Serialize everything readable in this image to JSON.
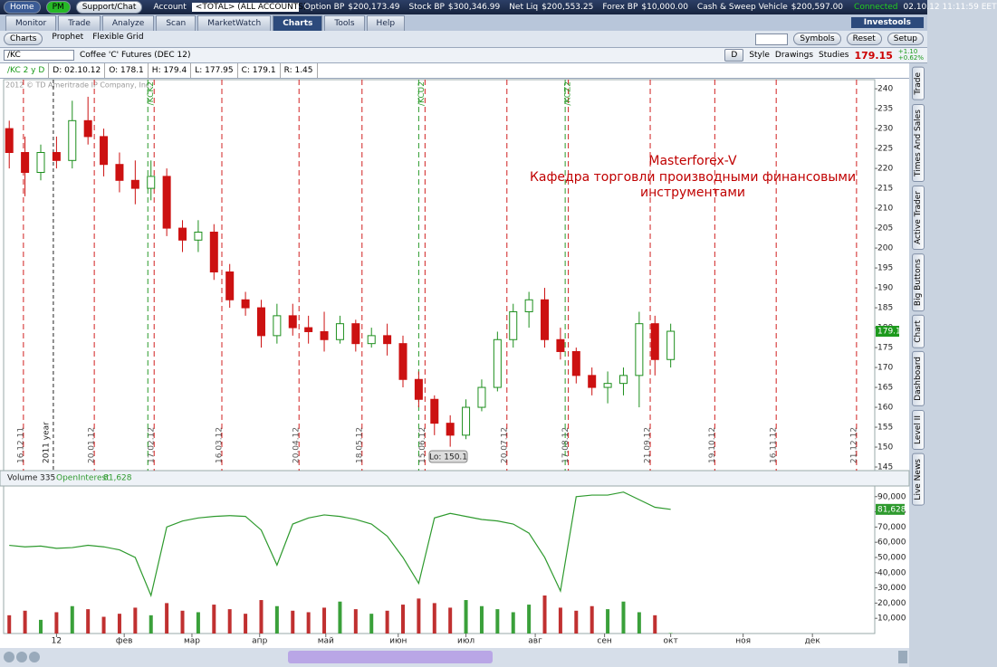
{
  "app": {
    "top_bar": {
      "home": "Home",
      "pm": "PM",
      "support": "Support/Chat",
      "account_label": "Account",
      "account": "<TOTAL> (ALL ACCOUNTS)",
      "fields": [
        {
          "label": "Option BP",
          "value": "$200,173.49"
        },
        {
          "label": "Stock BP",
          "value": "$300,346.99"
        },
        {
          "label": "Net Liq",
          "value": "$200,553.25"
        },
        {
          "label": "Forex BP",
          "value": "$10,000.00"
        },
        {
          "label": "Cash & Sweep Vehicle",
          "value": "$200,597.00"
        }
      ],
      "status": "Connected",
      "datetime": "02.10.12 11:11:59 EET"
    },
    "tabs": [
      "Monitor",
      "Trade",
      "Analyze",
      "Scan",
      "MarketWatch",
      "Charts",
      "Tools",
      "Help"
    ],
    "brand": "Investools",
    "subtabs": [
      "Charts",
      "Prophet",
      "Flexible Grid"
    ],
    "tools": [
      "Symbols",
      "Reset",
      "Setup"
    ],
    "symbol_bar": {
      "symbol": "/KC",
      "description": "Coffee 'C' Futures (DEC 12)",
      "aggregation": "D",
      "buttons": [
        "Style",
        "Drawings",
        "Studies"
      ],
      "last": "179.15",
      "change": "+1.10",
      "change_pct": "+0.62%"
    },
    "info_bar": [
      "/KC 2 y D",
      "D: 02.10.12",
      "O: 178.1",
      "H: 179.4",
      "L: 177.95",
      "C: 179.1",
      "R: 1.45"
    ],
    "side_tabs": [
      "Trade",
      "Times And Sales",
      "Active Trader",
      "Big Buttons",
      "Chart",
      "Dashboard",
      "Level II",
      "Live News"
    ]
  },
  "chart_data": [
    {
      "type": "candlestick",
      "copyright": "2012 © TD Ameritrade IP Company, Inc.",
      "annotation": [
        "Masterforex-V",
        "Кафедра торговли производными финансовыми",
        "инструментами"
      ],
      "low_label": "Lo: 150.1",
      "x": [
        -3,
        -2,
        -1,
        0,
        1,
        2,
        3,
        4,
        5,
        6,
        7,
        8,
        9,
        10,
        11,
        12,
        13,
        14,
        15,
        16,
        17,
        18,
        19,
        20,
        21,
        22,
        23,
        24,
        25,
        26,
        27,
        28,
        29,
        30,
        31,
        32,
        33,
        34,
        35,
        36,
        37,
        38,
        39
      ],
      "open": [
        230,
        224,
        219,
        224,
        222,
        232,
        228,
        221,
        217,
        215,
        218,
        205,
        202,
        204,
        194,
        187,
        185,
        178,
        183,
        180,
        179,
        177,
        181,
        176,
        178,
        176,
        167,
        162,
        156,
        153,
        160,
        165,
        177,
        184,
        187,
        177,
        174,
        168,
        165,
        166,
        168,
        181,
        172
      ],
      "high": [
        232,
        228,
        226,
        228,
        237,
        238,
        230,
        224,
        222,
        222,
        220,
        207,
        207,
        206,
        196,
        189,
        187,
        186,
        186,
        183,
        184,
        183,
        182,
        180,
        181,
        178,
        169,
        163,
        158,
        162,
        167,
        179,
        186,
        189,
        190,
        180,
        175,
        170,
        169,
        170,
        184,
        183,
        181
      ],
      "low": [
        220,
        213,
        217,
        220,
        220,
        226,
        218,
        214,
        211,
        212,
        203,
        199,
        199,
        192,
        185,
        183,
        175,
        176,
        178,
        176,
        174,
        176,
        174,
        175,
        173,
        165,
        160,
        153,
        150.1,
        152,
        159,
        164,
        175,
        180,
        175,
        172,
        166,
        163,
        161,
        163,
        160,
        168,
        170
      ],
      "close": [
        224,
        219,
        224,
        222,
        232,
        228,
        221,
        217,
        215,
        218,
        205,
        202,
        204,
        194,
        187,
        185,
        178,
        183,
        180,
        179,
        177,
        181,
        176,
        178,
        176,
        167,
        162,
        156,
        153,
        160,
        165,
        177,
        184,
        187,
        177,
        174,
        168,
        165,
        166,
        168,
        181,
        172,
        179.1
      ],
      "up_color": "#1d8f1d",
      "down_color": "#cc1111",
      "xlim": [
        -3.3,
        51.9
      ],
      "ylim": [
        144.1,
        242.3
      ],
      "yticks": [
        145,
        150,
        155,
        160,
        165,
        170,
        175,
        180,
        185,
        190,
        195,
        200,
        205,
        210,
        215,
        220,
        225,
        230,
        235,
        240
      ],
      "expirations": [
        {
          "x": -2.1,
          "label": "16.12.11"
        },
        {
          "x": 2.4,
          "label": "20.01.12"
        },
        {
          "x": 6.2,
          "label": "17.02.12"
        },
        {
          "x": 10.5,
          "label": "16.03.12"
        },
        {
          "x": 15.4,
          "label": "20.04.12"
        },
        {
          "x": 19.4,
          "label": "18.05.12"
        },
        {
          "x": 23.4,
          "label": "15.06.12"
        },
        {
          "x": 28.6,
          "label": "20.07.12"
        },
        {
          "x": 32.5,
          "label": "17.08.12"
        },
        {
          "x": 37.7,
          "label": "21.09.12"
        },
        {
          "x": 41.8,
          "label": "19.10.12"
        },
        {
          "x": 45.7,
          "label": "16.11.12"
        },
        {
          "x": 50.8,
          "label": "21.12.12"
        }
      ],
      "rolls": [
        {
          "x": 5.8,
          "label": "/KCK2"
        },
        {
          "x": 23,
          "label": "/KCU2"
        },
        {
          "x": 32.3,
          "label": "/KCZ2"
        }
      ],
      "year_marker": {
        "x": -0.2,
        "label": "2011 year"
      }
    },
    {
      "type": "volume",
      "x": [
        -3,
        -2,
        -1,
        0,
        1,
        2,
        3,
        4,
        5,
        6,
        7,
        8,
        9,
        10,
        11,
        12,
        13,
        14,
        15,
        16,
        17,
        18,
        19,
        20,
        21,
        22,
        23,
        24,
        25,
        26,
        27,
        28,
        29,
        30,
        31,
        32,
        33,
        34,
        35,
        36,
        37,
        38,
        39
      ],
      "series": [
        {
          "name": "Volume",
          "values": [
            12000,
            15000,
            9000,
            14000,
            18000,
            16000,
            11000,
            13000,
            17000,
            12000,
            20000,
            15000,
            14000,
            19000,
            16000,
            13000,
            22000,
            18000,
            15000,
            14000,
            17000,
            21000,
            16000,
            13000,
            15000,
            19000,
            23000,
            20000,
            17000,
            22000,
            18000,
            16000,
            14000,
            19000,
            25000,
            17000,
            15000,
            18000,
            16000,
            21000,
            14000,
            12000,
            335
          ]
        },
        {
          "name": "OpenInterest",
          "color": "#2e9a2e",
          "last_label": "81,628",
          "values": [
            58000,
            57000,
            57500,
            56000,
            56500,
            58000,
            57000,
            55000,
            50000,
            25000,
            70000,
            74000,
            76000,
            77000,
            77500,
            77000,
            68000,
            45000,
            72000,
            76000,
            78000,
            77000,
            75000,
            72000,
            64000,
            50000,
            33000,
            76000,
            79000,
            77000,
            75000,
            74000,
            72000,
            66000,
            50000,
            28000,
            90000,
            91000,
            91000,
            93000,
            88000,
            83000,
            81628
          ]
        }
      ],
      "xlim": [
        -3.3,
        51.9
      ],
      "ylim": [
        0,
        97000
      ],
      "yticks": [
        {
          "value": 10000,
          "label": "10,000"
        },
        {
          "value": 20000,
          "label": "20,000"
        },
        {
          "value": 30000,
          "label": "30,000"
        },
        {
          "value": 40000,
          "label": "40,000"
        },
        {
          "value": 50000,
          "label": "50,000"
        },
        {
          "value": 60000,
          "label": "60,000"
        },
        {
          "value": 70000,
          "label": "70,000"
        },
        {
          "value": 80000,
          "label": "80,000"
        },
        {
          "value": 90000,
          "label": "90,000"
        }
      ],
      "xticks": [
        {
          "value": 0,
          "label": "12"
        },
        {
          "value": 4.3,
          "label": "фев"
        },
        {
          "value": 8.6,
          "label": "мар"
        },
        {
          "value": 12.9,
          "label": "апр"
        },
        {
          "value": 17.1,
          "label": "май"
        },
        {
          "value": 21.7,
          "label": "июн"
        },
        {
          "value": 26,
          "label": "июл"
        },
        {
          "value": 30.4,
          "label": "авг"
        },
        {
          "value": 34.8,
          "label": "сен"
        },
        {
          "value": 39,
          "label": "окт"
        },
        {
          "value": 43.6,
          "label": "ноя"
        },
        {
          "value": 48,
          "label": "дек"
        }
      ]
    }
  ]
}
